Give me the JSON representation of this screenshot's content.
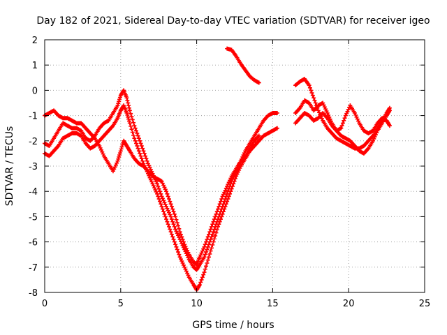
{
  "chart_data": {
    "type": "scatter",
    "title": "Day 182 of 2021, Sidereal Day-to-day VTEC variation (SDTVAR) for receiver igeo",
    "xlabel": "GPS time / hours",
    "ylabel": "SDTVAR / TECUs",
    "xlim": [
      0,
      25
    ],
    "ylim": [
      -8,
      2
    ],
    "xticks": [
      "0",
      "5",
      "10",
      "15",
      "20",
      "25"
    ],
    "yticks": [
      "2",
      "1",
      "0",
      "-1",
      "-2",
      "-3",
      "-4",
      "-5",
      "-6",
      "-7",
      "-8"
    ],
    "grid": true,
    "marker": "plus",
    "color": "#ff0000",
    "series": [
      {
        "x": [
          0.0,
          0.3,
          0.6,
          0.9,
          1.2,
          1.5,
          1.8,
          2.1,
          2.4,
          2.7,
          3.0,
          3.3,
          3.6,
          3.9,
          4.2,
          4.5,
          4.8,
          5.0,
          5.2,
          5.4,
          5.6,
          5.9,
          6.2,
          6.5,
          6.8,
          7.1,
          7.4,
          7.7,
          8.0,
          8.3,
          8.6,
          8.9,
          9.2,
          9.5,
          9.8,
          10.0,
          10.2,
          10.5,
          10.8,
          11.1,
          11.4,
          11.7,
          12.0,
          12.3,
          12.6,
          12.9,
          13.2,
          13.5,
          13.8,
          14.1,
          14.4,
          14.7,
          15.0,
          15.3
        ],
        "y": [
          -2.1,
          -2.2,
          -1.9,
          -1.6,
          -1.3,
          -1.4,
          -1.5,
          -1.5,
          -1.6,
          -1.9,
          -2.0,
          -1.8,
          -1.5,
          -1.3,
          -1.2,
          -0.9,
          -0.6,
          -0.2,
          0.0,
          -0.3,
          -0.8,
          -1.4,
          -1.9,
          -2.4,
          -2.9,
          -3.3,
          -3.7,
          -4.2,
          -4.6,
          -5.0,
          -5.5,
          -5.9,
          -6.3,
          -6.7,
          -7.0,
          -7.1,
          -6.9,
          -6.6,
          -6.1,
          -5.6,
          -5.1,
          -4.6,
          -4.1,
          -3.6,
          -3.2,
          -2.8,
          -2.4,
          -2.1,
          -1.8,
          -1.5,
          -1.2,
          -1.0,
          -0.9,
          -0.9
        ]
      },
      {
        "x": [
          0.0,
          0.3,
          0.6,
          0.9,
          1.2,
          1.5,
          1.8,
          2.1,
          2.4,
          2.7,
          3.0,
          3.3,
          3.6,
          3.9,
          4.2,
          4.5,
          4.8,
          5.0,
          5.2,
          5.4,
          5.6,
          5.9,
          6.2,
          6.5,
          6.8,
          7.1,
          7.4,
          7.7,
          8.0,
          8.3,
          8.6,
          8.9,
          9.2,
          9.5,
          9.8,
          10.0,
          10.2,
          10.5,
          10.8,
          11.1,
          11.4,
          11.7,
          12.0,
          12.3,
          12.6,
          12.9,
          13.2,
          13.5,
          13.8,
          14.1,
          14.4,
          14.7,
          15.0,
          15.3
        ],
        "y": [
          -2.5,
          -2.6,
          -2.4,
          -2.2,
          -1.9,
          -1.8,
          -1.7,
          -1.7,
          -1.8,
          -2.1,
          -2.3,
          -2.2,
          -2.0,
          -1.8,
          -1.6,
          -1.4,
          -1.1,
          -0.8,
          -0.6,
          -0.9,
          -1.3,
          -1.9,
          -2.4,
          -2.9,
          -3.3,
          -3.7,
          -4.1,
          -4.6,
          -5.1,
          -5.6,
          -6.1,
          -6.6,
          -7.0,
          -7.4,
          -7.7,
          -7.9,
          -7.7,
          -7.2,
          -6.6,
          -6.0,
          -5.4,
          -4.9,
          -4.4,
          -3.9,
          -3.4,
          -3.0,
          -2.7,
          -2.4,
          -2.2,
          -2.0,
          -1.8,
          -1.7,
          -1.6,
          -1.5
        ]
      },
      {
        "x": [
          0.0,
          0.3,
          0.6,
          0.9,
          1.2,
          1.5,
          1.8,
          2.1,
          2.4,
          2.7,
          3.0,
          3.3,
          3.6,
          3.9,
          4.2,
          4.5,
          4.8,
          5.0,
          5.2,
          5.4,
          5.6,
          5.9,
          6.2,
          6.5,
          6.8,
          7.1,
          7.4,
          7.7,
          8.0,
          8.3,
          8.6,
          8.9,
          9.2,
          9.5,
          9.8,
          10.0,
          10.2,
          10.5,
          10.8,
          11.1,
          11.4,
          11.7,
          12.0,
          12.3,
          12.6,
          12.9,
          13.2,
          13.5,
          13.8,
          14.1
        ],
        "y": [
          -1.0,
          -0.9,
          -0.8,
          -1.0,
          -1.1,
          -1.1,
          -1.2,
          -1.3,
          -1.3,
          -1.5,
          -1.7,
          -1.9,
          -2.2,
          -2.6,
          -2.9,
          -3.2,
          -2.8,
          -2.4,
          -2.0,
          -2.2,
          -2.4,
          -2.7,
          -2.9,
          -3.0,
          -3.2,
          -3.4,
          -3.5,
          -3.6,
          -4.0,
          -4.5,
          -5.0,
          -5.6,
          -6.1,
          -6.5,
          -6.8,
          -6.9,
          -6.6,
          -6.2,
          -5.7,
          -5.2,
          -4.7,
          -4.2,
          -3.8,
          -3.4,
          -3.1,
          -2.8,
          -2.6,
          -2.3,
          -2.0,
          -1.8
        ]
      },
      {
        "x": [
          12.0,
          12.3,
          12.6,
          12.9,
          13.2,
          13.5,
          13.8,
          14.1
        ],
        "y": [
          1.65,
          1.6,
          1.35,
          1.05,
          0.8,
          0.55,
          0.4,
          0.3
        ]
      },
      {
        "x": [
          16.5,
          16.8,
          17.1,
          17.4,
          17.7,
          18.0,
          18.3,
          18.6,
          18.9,
          19.2,
          19.5,
          19.8,
          20.1,
          20.4,
          20.7,
          21.0,
          21.3,
          21.6,
          21.9,
          22.2,
          22.5,
          22.7
        ],
        "y": [
          0.2,
          0.35,
          0.45,
          0.2,
          -0.3,
          -0.8,
          -1.2,
          -1.5,
          -1.7,
          -1.9,
          -2.0,
          -2.1,
          -2.2,
          -2.3,
          -2.3,
          -2.2,
          -2.0,
          -1.8,
          -1.5,
          -1.2,
          -0.9,
          -0.7
        ]
      },
      {
        "x": [
          16.5,
          16.8,
          17.1,
          17.4,
          17.7,
          18.0,
          18.3,
          18.6,
          18.9,
          19.2,
          19.5,
          19.8,
          20.1,
          20.4,
          20.7,
          21.0,
          21.3,
          21.6,
          21.9,
          22.2,
          22.5,
          22.7
        ],
        "y": [
          -1.3,
          -1.1,
          -0.9,
          -1.0,
          -1.2,
          -1.1,
          -0.9,
          -1.1,
          -1.4,
          -1.6,
          -1.5,
          -1.0,
          -0.6,
          -0.9,
          -1.3,
          -1.6,
          -1.7,
          -1.6,
          -1.3,
          -1.1,
          -1.2,
          -1.4
        ]
      },
      {
        "x": [
          16.5,
          16.8,
          17.1,
          17.4,
          17.7,
          18.0,
          18.3,
          18.6,
          18.9,
          19.2,
          19.5,
          19.8,
          20.1,
          20.4,
          20.7,
          21.0,
          21.3,
          21.6,
          21.9,
          22.2,
          22.5,
          22.7
        ],
        "y": [
          -0.9,
          -0.7,
          -0.4,
          -0.5,
          -0.8,
          -0.6,
          -0.5,
          -0.9,
          -1.3,
          -1.6,
          -1.8,
          -1.9,
          -2.0,
          -2.2,
          -2.4,
          -2.5,
          -2.3,
          -2.0,
          -1.6,
          -1.3,
          -1.0,
          -0.8
        ]
      }
    ]
  }
}
